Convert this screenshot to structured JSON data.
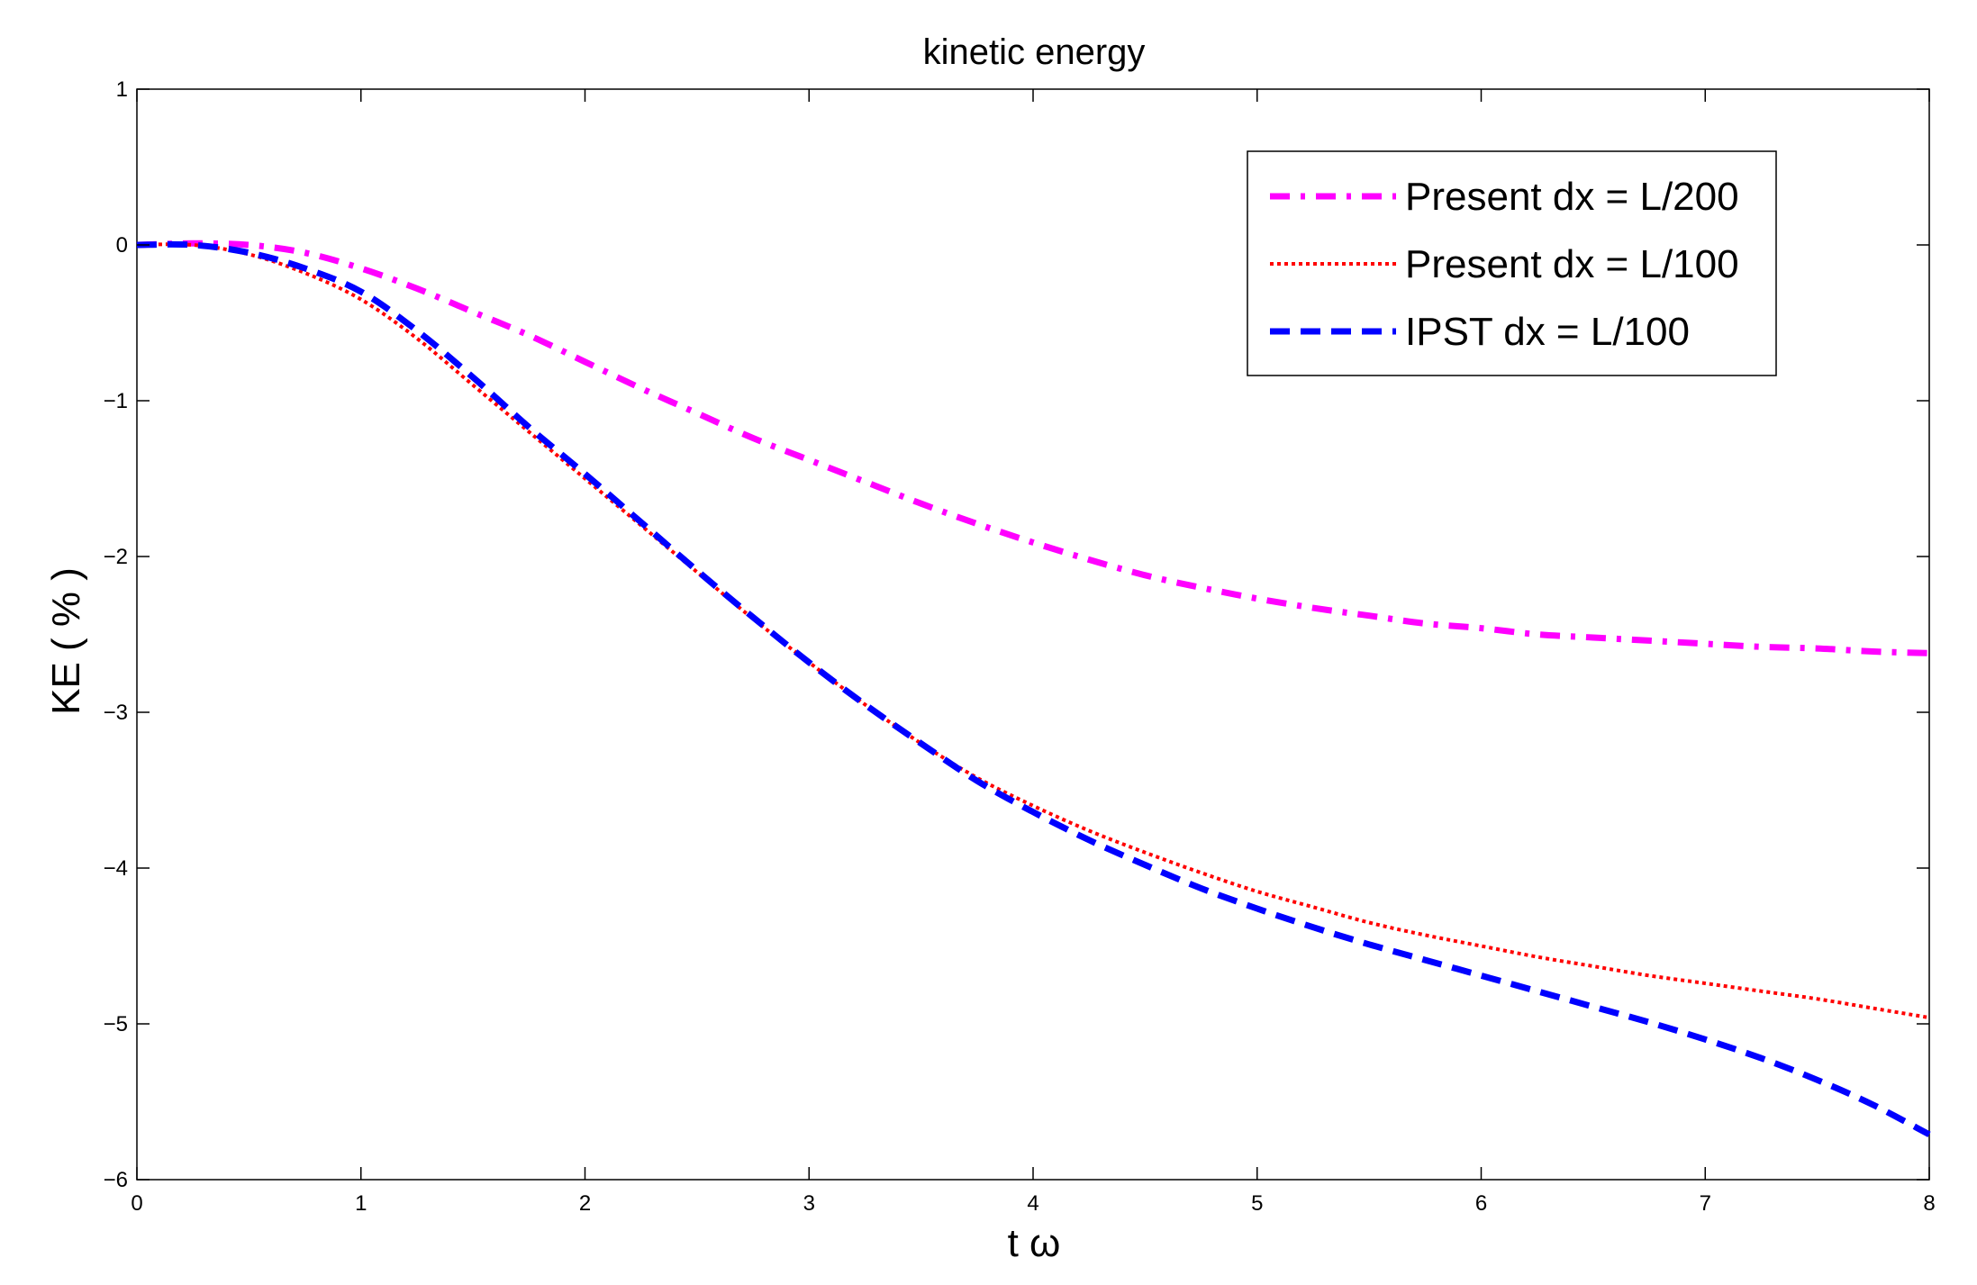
{
  "chart_data": {
    "type": "line",
    "title": "kinetic energy",
    "xlabel": "t ω",
    "ylabel": "KE ( % )",
    "xlim": [
      0,
      8
    ],
    "ylim": [
      -6,
      1
    ],
    "xticks": [
      "0",
      "1",
      "2",
      "3",
      "4",
      "5",
      "6",
      "7",
      "8"
    ],
    "yticks": [
      "1",
      "0",
      "−1",
      "−2",
      "−3",
      "−4",
      "−5",
      "−6"
    ],
    "grid": false,
    "legend_position": "top-right",
    "series": [
      {
        "name": "Present dx = L/200",
        "color": "#ff00ff",
        "style": "dash-dot",
        "x": [
          0,
          0.25,
          0.5,
          0.75,
          1.0,
          1.25,
          1.5,
          1.75,
          2.0,
          2.25,
          2.5,
          2.75,
          3.0,
          3.25,
          3.5,
          3.75,
          4.0,
          4.25,
          4.5,
          4.75,
          5.0,
          5.25,
          5.5,
          5.75,
          6.0,
          6.25,
          6.5,
          6.75,
          7.0,
          7.25,
          7.5,
          7.75,
          8.0
        ],
        "y": [
          0,
          0.01,
          0.0,
          -0.05,
          -0.15,
          -0.28,
          -0.43,
          -0.58,
          -0.75,
          -0.92,
          -1.08,
          -1.24,
          -1.38,
          -1.52,
          -1.66,
          -1.79,
          -1.91,
          -2.02,
          -2.12,
          -2.2,
          -2.27,
          -2.33,
          -2.38,
          -2.43,
          -2.46,
          -2.5,
          -2.52,
          -2.54,
          -2.56,
          -2.58,
          -2.59,
          -2.61,
          -2.62
        ]
      },
      {
        "name": "Present dx = L/100",
        "color": "#ff0000",
        "style": "dotted",
        "x": [
          0,
          0.25,
          0.5,
          0.75,
          1.0,
          1.25,
          1.5,
          1.75,
          2.0,
          2.25,
          2.5,
          2.75,
          3.0,
          3.25,
          3.5,
          3.75,
          4.0,
          4.25,
          4.5,
          4.75,
          5.0,
          5.25,
          5.5,
          5.75,
          6.0,
          6.25,
          6.5,
          6.75,
          7.0,
          7.25,
          7.5,
          7.75,
          8.0
        ],
        "y": [
          0,
          0.0,
          -0.06,
          -0.18,
          -0.35,
          -0.6,
          -0.9,
          -1.2,
          -1.5,
          -1.8,
          -2.1,
          -2.4,
          -2.68,
          -2.95,
          -3.2,
          -3.42,
          -3.6,
          -3.76,
          -3.9,
          -4.03,
          -4.15,
          -4.25,
          -4.35,
          -4.43,
          -4.5,
          -4.57,
          -4.63,
          -4.69,
          -4.74,
          -4.79,
          -4.84,
          -4.9,
          -4.96
        ]
      },
      {
        "name": "IPST  dx = L/100",
        "color": "#0000ff",
        "style": "dashed",
        "x": [
          0,
          0.25,
          0.5,
          0.75,
          1.0,
          1.25,
          1.5,
          1.75,
          2.0,
          2.25,
          2.5,
          2.75,
          3.0,
          3.25,
          3.5,
          3.75,
          4.0,
          4.25,
          4.5,
          4.75,
          5.0,
          5.25,
          5.5,
          5.75,
          6.0,
          6.25,
          6.5,
          6.75,
          7.0,
          7.25,
          7.5,
          7.75,
          8.0
        ],
        "y": [
          0,
          0.0,
          -0.05,
          -0.15,
          -0.3,
          -0.55,
          -0.85,
          -1.17,
          -1.47,
          -1.78,
          -2.09,
          -2.39,
          -2.68,
          -2.95,
          -3.2,
          -3.44,
          -3.64,
          -3.82,
          -3.98,
          -4.13,
          -4.26,
          -4.38,
          -4.49,
          -4.59,
          -4.69,
          -4.79,
          -4.89,
          -4.99,
          -5.1,
          -5.22,
          -5.36,
          -5.52,
          -5.71
        ]
      }
    ]
  }
}
